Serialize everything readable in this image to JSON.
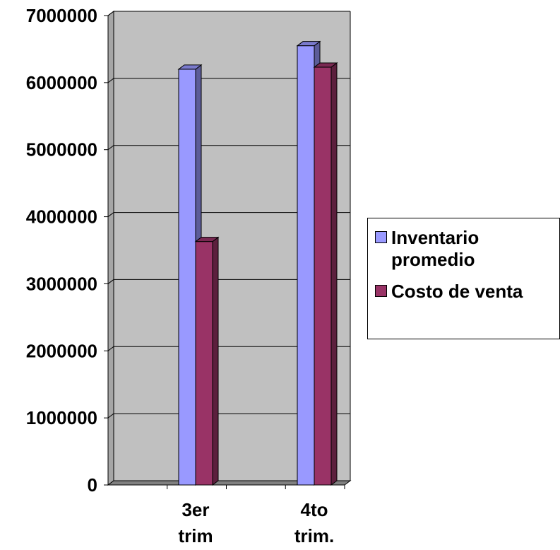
{
  "chart_data": {
    "type": "bar",
    "categories": [
      "3er\ntrim",
      "4to\ntrim."
    ],
    "series": [
      {
        "name": "Inventario promedio",
        "values": [
          6200000,
          6550000
        ],
        "color": "#9999ff"
      },
      {
        "name": "Costo de venta",
        "values": [
          3630000,
          6230000
        ],
        "color": "#993366"
      }
    ],
    "title": "",
    "xlabel": "",
    "ylabel": "",
    "ylim": [
      0,
      7000000
    ],
    "yticks": [
      "0",
      "1000000",
      "2000000",
      "3000000",
      "4000000",
      "5000000",
      "6000000",
      "7000000"
    ],
    "grid": true,
    "legend_position": "right",
    "plot_background": "#c0c0c0"
  }
}
